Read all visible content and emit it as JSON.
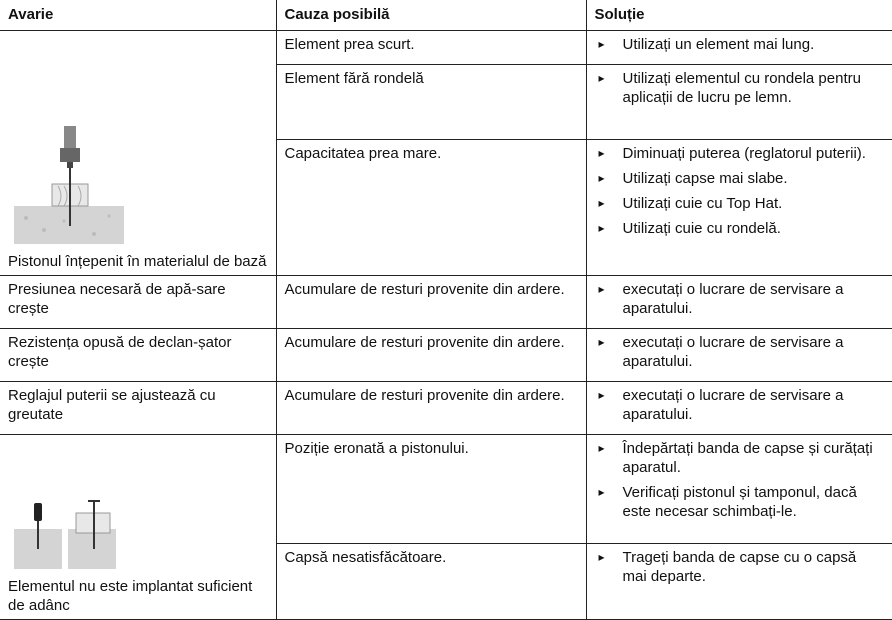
{
  "table": {
    "header": [
      "Avarie",
      "Cauza posibilă",
      "Soluție"
    ],
    "groups": [
      {
        "fault": "Pistonul înțepenit în materialul de bază",
        "causes": [
          {
            "cause": "Element prea scurt.",
            "solutions": [
              "Utilizați un element mai lung."
            ]
          },
          {
            "cause": "Element fără rondelă",
            "solutions": [
              "Utilizați elementul cu rondela pentru aplicații de lucru pe lemn."
            ]
          },
          {
            "cause": "Capacitatea prea mare.",
            "solutions": [
              "Diminuați puterea (reglatorul puterii).",
              "Utilizați capse mai slabe.",
              "Utilizați cuie cu Top Hat.",
              "Utilizați cuie cu rondelă."
            ]
          }
        ]
      },
      {
        "fault": "Presiunea necesară de apă-sare crește",
        "causes": [
          {
            "cause": "Acumulare de resturi provenite din ardere.",
            "solutions": [
              "executați o lucrare de servisare a aparatului."
            ]
          }
        ]
      },
      {
        "fault": "Rezistența opusă de declan-șator crește",
        "causes": [
          {
            "cause": "Acumulare de resturi provenite din ardere.",
            "solutions": [
              "executați o lucrare de servisare a aparatului."
            ]
          }
        ]
      },
      {
        "fault": "Reglajul puterii se ajustează cu greutate",
        "causes": [
          {
            "cause": "Acumulare de resturi provenite din ardere.",
            "solutions": [
              "executați o lucrare de servisare a aparatului."
            ]
          }
        ]
      },
      {
        "fault": "Elementul nu este implantat suficient de adânc",
        "causes": [
          {
            "cause": "Poziție eronată a pistonului.",
            "solutions": [
              "Îndepărtați banda de capse și curățați aparatul.",
              "Verificați pistonul și tamponul, dacă este necesar schimbați-le."
            ]
          },
          {
            "cause": "Capsă nesatisfăcătoare.",
            "solutions": [
              "Trageți banda de capse cu o capsă mai departe."
            ]
          }
        ]
      }
    ]
  }
}
